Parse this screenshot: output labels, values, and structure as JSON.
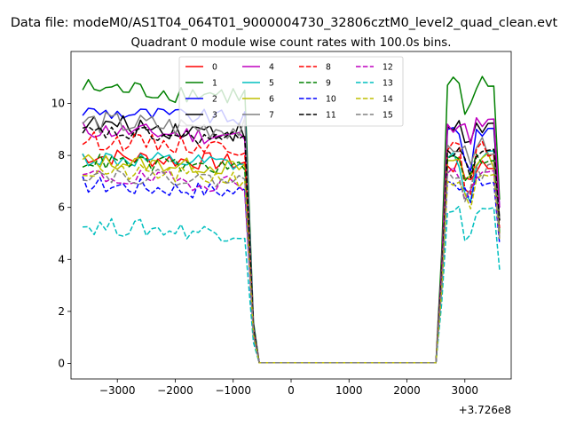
{
  "chart_data": {
    "type": "line",
    "suptitle": "Data file: modeM0/AS1T04_064T01_9000004730_32806cztM0_level2_quad_clean.evt",
    "title": "Quadrant 0 module wise count rates with 100.0s bins.",
    "xlabel": "",
    "ylabel": "",
    "x_offset_label": "+3.726e8",
    "xlim": [
      -3800,
      3800
    ],
    "ylim": [
      -0.6,
      12.0
    ],
    "xticks": [
      -3000,
      -2000,
      -1000,
      0,
      1000,
      2000,
      3000
    ],
    "xtick_labels": [
      "−3000",
      "−2000",
      "−1000",
      "0",
      "1000",
      "2000",
      "3000"
    ],
    "yticks": [
      0,
      2,
      4,
      6,
      8,
      10
    ],
    "ytick_labels": [
      "0",
      "2",
      "4",
      "6",
      "8",
      "10"
    ],
    "grid": false,
    "legend_position": "upper-center",
    "x_axis_units": "seconds, relative to offset",
    "segments": [
      {
        "x_start": -3600,
        "x_end": -750,
        "step": 100,
        "shape": "noisy"
      },
      {
        "x_start": -650,
        "x_end": -550,
        "step": 100,
        "shape": "drop"
      },
      {
        "x_start": -550,
        "x_end": 2500,
        "step": 100,
        "shape": "zero"
      },
      {
        "x_start": 2500,
        "x_end": 2700,
        "step": 100,
        "shape": "rise"
      },
      {
        "x_start": 2700,
        "x_end": 3500,
        "step": 100,
        "shape": "noisy"
      },
      {
        "x_start": 3500,
        "x_end": 3600,
        "step": 100,
        "shape": "tail"
      }
    ],
    "series": [
      {
        "name": "0",
        "color": "#ff0000",
        "style": "solid",
        "level": 8.0,
        "level_after": 7.6,
        "variation": 0.35,
        "tail": 5.0
      },
      {
        "name": "1",
        "color": "#008000",
        "style": "solid",
        "level": 10.6,
        "level_after": 10.7,
        "variation": 0.4,
        "tail": 6.3
      },
      {
        "name": "2",
        "color": "#0000ff",
        "style": "solid",
        "level": 9.7,
        "level_after": 9.0,
        "variation": 0.3,
        "tail": 6.0
      },
      {
        "name": "3",
        "color": "#000000",
        "style": "solid",
        "level": 9.2,
        "level_after": 9.1,
        "variation": 0.4,
        "tail": 5.5
      },
      {
        "name": "4",
        "color": "#bf00bf",
        "style": "solid",
        "level": 9.0,
        "level_after": 9.2,
        "variation": 0.35,
        "tail": 6.0
      },
      {
        "name": "5",
        "color": "#00bfbf",
        "style": "solid",
        "level": 7.9,
        "level_after": 7.9,
        "variation": 0.35,
        "tail": 5.0
      },
      {
        "name": "6",
        "color": "#bfbf00",
        "style": "solid",
        "level": 7.8,
        "level_after": 7.8,
        "variation": 0.3,
        "tail": 5.0
      },
      {
        "name": "7",
        "color": "#808080",
        "style": "solid",
        "level": 9.3,
        "level_after": 8.4,
        "variation": 0.45,
        "tail": 5.5
      },
      {
        "name": "8",
        "color": "#ff0000",
        "style": "dashed",
        "level": 8.6,
        "level_after": 8.2,
        "variation": 0.35,
        "tail": 5.2
      },
      {
        "name": "9",
        "color": "#008000",
        "style": "dashed",
        "level": 7.8,
        "level_after": 7.9,
        "variation": 0.3,
        "tail": 5.0
      },
      {
        "name": "10",
        "color": "#0000ff",
        "style": "dashed",
        "level": 6.9,
        "level_after": 7.0,
        "variation": 0.35,
        "tail": 4.6
      },
      {
        "name": "11",
        "color": "#000000",
        "style": "dashed",
        "level": 8.9,
        "level_after": 8.2,
        "variation": 0.3,
        "tail": 5.5
      },
      {
        "name": "12",
        "color": "#bf00bf",
        "style": "dashed",
        "level": 7.2,
        "level_after": 7.3,
        "variation": 0.35,
        "tail": 4.8
      },
      {
        "name": "13",
        "color": "#00bfbf",
        "style": "dashed",
        "level": 5.3,
        "level_after": 5.8,
        "variation": 0.35,
        "tail": 3.6
      },
      {
        "name": "14",
        "color": "#bfbf00",
        "style": "dashed",
        "level": 7.4,
        "level_after": 7.0,
        "variation": 0.35,
        "tail": 4.8
      },
      {
        "name": "15",
        "color": "#808080",
        "style": "dashed",
        "level": 7.3,
        "level_after": 7.4,
        "variation": 0.3,
        "tail": 4.8
      }
    ]
  }
}
